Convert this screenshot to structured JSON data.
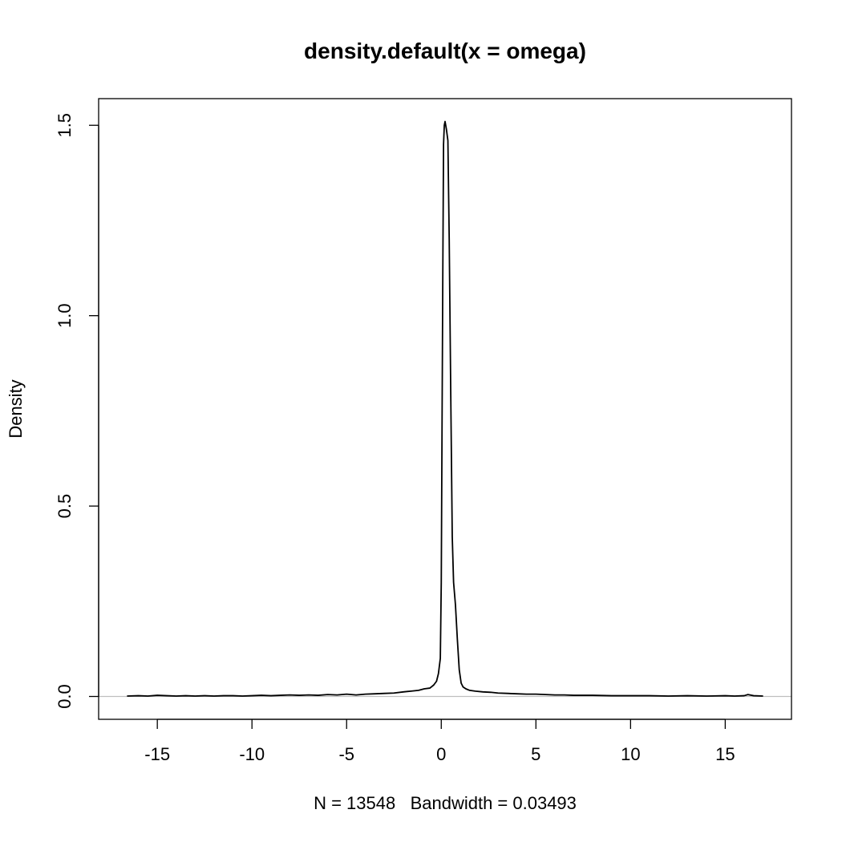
{
  "chart_data": {
    "type": "line",
    "title": "density.default(x = omega)",
    "xlabel": "N = 13548   Bandwidth = 0.03493",
    "ylabel": "Density",
    "xlim": [
      -18.1,
      18.5
    ],
    "ylim": [
      -0.06,
      1.57
    ],
    "xticks": [
      -15,
      -10,
      -5,
      0,
      5,
      10,
      15
    ],
    "xtick_labels": [
      "-15",
      "-10",
      "-5",
      "0",
      "5",
      "10",
      "15"
    ],
    "yticks": [
      0.0,
      0.5,
      1.0,
      1.5
    ],
    "ytick_labels": [
      "0.0",
      "0.5",
      "1.0",
      "1.5"
    ],
    "baseline": 0,
    "grid": false,
    "legend": "none",
    "colors": {
      "line": "#000000",
      "baseline": "#bebebe",
      "frame": "#000000"
    },
    "series": [
      {
        "x": [
          -16.6,
          -16.0,
          -15.5,
          -15.0,
          -14.5,
          -14.0,
          -13.5,
          -13.0,
          -12.5,
          -12.0,
          -11.5,
          -11.0,
          -10.5,
          -10.0,
          -9.5,
          -9.0,
          -8.5,
          -8.0,
          -7.5,
          -7.0,
          -6.5,
          -6.0,
          -5.5,
          -5.0,
          -4.5,
          -4.0,
          -3.5,
          -3.0,
          -2.5,
          -2.0,
          -1.6,
          -1.2,
          -0.9,
          -0.6,
          -0.4,
          -0.25,
          -0.15,
          -0.05,
          0.0,
          0.04,
          0.08,
          0.12,
          0.16,
          0.2,
          0.27,
          0.35,
          0.42,
          0.5,
          0.58,
          0.65,
          0.75,
          0.85,
          0.95,
          1.05,
          1.15,
          1.3,
          1.5,
          1.8,
          2.2,
          2.6,
          3.0,
          3.5,
          4.0,
          4.5,
          5.0,
          5.5,
          6.0,
          6.5,
          7.0,
          7.5,
          8.0,
          9.0,
          10.0,
          11.0,
          12.0,
          13.0,
          14.0,
          15.0,
          15.5,
          16.0,
          16.2,
          16.5,
          17.0
        ],
        "y": [
          0.001,
          0.002,
          0.001,
          0.003,
          0.002,
          0.001,
          0.002,
          0.001,
          0.002,
          0.001,
          0.002,
          0.002,
          0.001,
          0.002,
          0.003,
          0.002,
          0.003,
          0.004,
          0.003,
          0.004,
          0.003,
          0.005,
          0.004,
          0.006,
          0.004,
          0.006,
          0.007,
          0.008,
          0.009,
          0.012,
          0.014,
          0.016,
          0.02,
          0.022,
          0.03,
          0.04,
          0.06,
          0.1,
          0.3,
          0.7,
          1.1,
          1.45,
          1.5,
          1.51,
          1.49,
          1.46,
          1.2,
          0.8,
          0.42,
          0.3,
          0.24,
          0.15,
          0.07,
          0.035,
          0.025,
          0.02,
          0.016,
          0.014,
          0.012,
          0.011,
          0.009,
          0.008,
          0.007,
          0.006,
          0.006,
          0.005,
          0.004,
          0.004,
          0.003,
          0.003,
          0.003,
          0.002,
          0.002,
          0.002,
          0.001,
          0.002,
          0.001,
          0.002,
          0.001,
          0.002,
          0.005,
          0.002,
          0.001
        ]
      }
    ]
  }
}
